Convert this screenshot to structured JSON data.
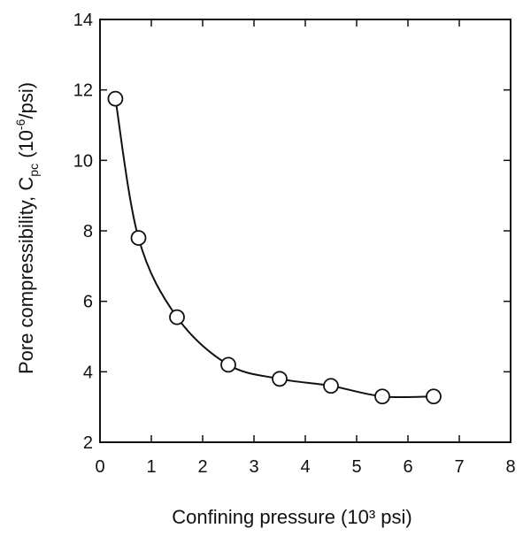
{
  "chart_data": {
    "type": "line",
    "xlabel": "Confining pressure (10³ psi)",
    "ylabel_parts": {
      "prefix": "Pore compressibility, C",
      "sub": "pc",
      "mid": " (10",
      "sup": "-6",
      "suffix": "/psi)"
    },
    "xlim": [
      0,
      8
    ],
    "ylim": [
      2,
      14
    ],
    "x_ticks": [
      0,
      1,
      2,
      3,
      4,
      5,
      6,
      7,
      8
    ],
    "x_tick_labels": [
      "0",
      "1",
      "2",
      "3",
      "4",
      "5",
      "6",
      "7",
      "8"
    ],
    "y_ticks": [
      2,
      4,
      6,
      8,
      10,
      12,
      14
    ],
    "y_tick_labels": [
      "2",
      "4",
      "6",
      "8",
      "10",
      "12",
      "14"
    ],
    "grid": false,
    "series": [
      {
        "marker": "open-circle",
        "color": "#111111",
        "x": [
          0.3,
          0.75,
          1.5,
          2.5,
          3.5,
          4.5,
          5.5,
          6.5
        ],
        "y": [
          11.75,
          7.8,
          5.55,
          4.2,
          3.8,
          3.6,
          3.3,
          3.3
        ]
      }
    ]
  }
}
